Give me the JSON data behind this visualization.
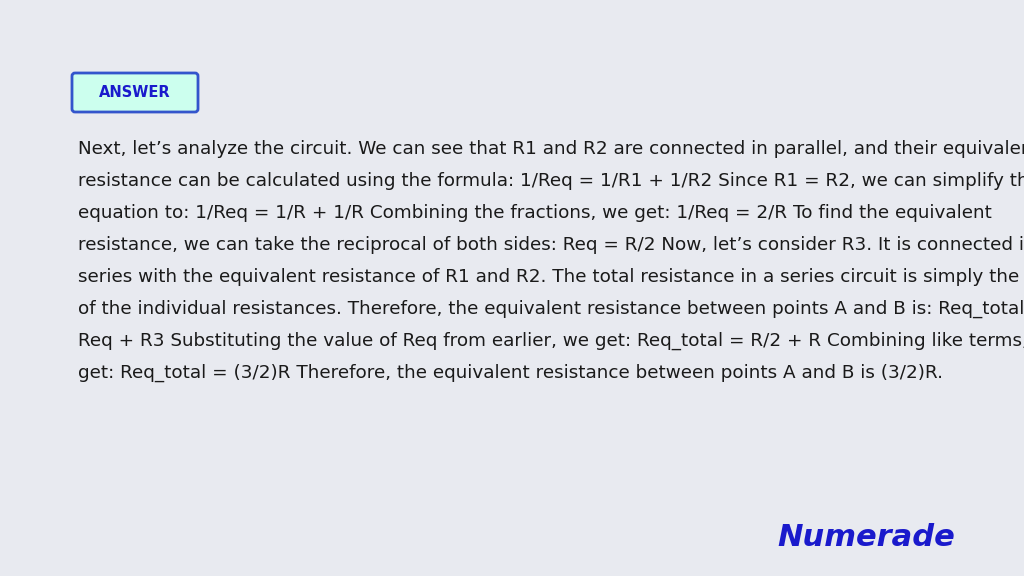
{
  "background_color": "#e8eaf0",
  "answer_label": "ANSWER",
  "answer_box_bg": "#ccffee",
  "answer_box_border": "#3355cc",
  "answer_box_text_color": "#1a1acc",
  "body_text": "Next, let’s analyze the circuit. We can see that R1 and R2 are connected in parallel, and their equivalent\nresistance can be calculated using the formula: 1/Req = 1/R1 + 1/R2 Since R1 = R2, we can simplify the\nequation to: 1/Req = 1/R + 1/R Combining the fractions, we get: 1/Req = 2/R To find the equivalent\nresistance, we can take the reciprocal of both sides: Req = R/2 Now, let’s consider R3. It is connected in\nseries with the equivalent resistance of R1 and R2. The total resistance in a series circuit is simply the sum\nof the individual resistances. Therefore, the equivalent resistance between points A and B is: Req_total =\nReq + R3 Substituting the value of Req from earlier, we get: Req_total = R/2 + R Combining like terms, we\nget: Req_total = (3/2)R Therefore, the equivalent resistance between points A and B is (3/2)R.",
  "body_text_color": "#1a1a1a",
  "numerade_text": "Numerade",
  "numerade_color": "#1a1acc",
  "numerade_fontsize": 22
}
